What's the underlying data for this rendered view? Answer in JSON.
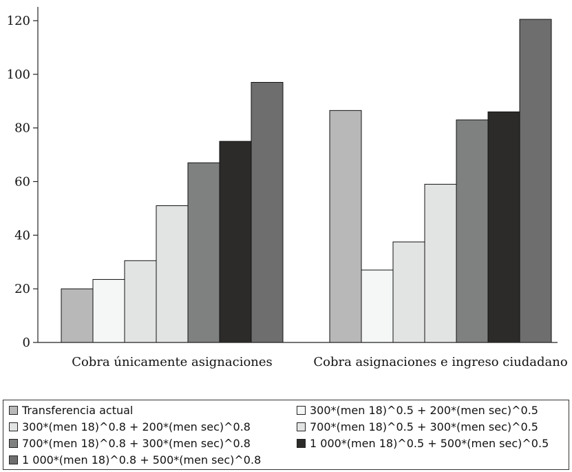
{
  "chart_data": {
    "type": "bar",
    "categories": [
      "Cobra únicamente asignaciones",
      "Cobra asignaciones e ingreso ciudadano"
    ],
    "ylim": [
      0,
      120
    ],
    "yticks": [
      0,
      20,
      40,
      60,
      80,
      100,
      120
    ],
    "grid": false,
    "legend_placement": "bottom",
    "series": [
      {
        "name": "Transferencia actual",
        "color": "#b8b8b8",
        "values": [
          20,
          86.5
        ]
      },
      {
        "name": "300*(men 18)^0.5 + 200*(men sec)^0.5",
        "color": "#f5f7f7",
        "values": [
          23.5,
          27
        ]
      },
      {
        "name": "300*(men 18)^0.8 + 200*(men sec)^0.8",
        "color": "#e2e4e4",
        "values": [
          30.5,
          37.5
        ]
      },
      {
        "name": "700*(men 18)^0.5 + 300*(men sec)^0.5",
        "color": "#e2e4e4",
        "values": [
          51,
          59
        ]
      },
      {
        "name": "700*(men 18)^0.8 + 300*(men sec)^0.8",
        "color": "#7f8181",
        "values": [
          67,
          83
        ]
      },
      {
        "name": "1 000*(men 18)^0.5 + 500*(men sec)^0.5",
        "color": "#2c2b29",
        "values": [
          75,
          86
        ]
      },
      {
        "name": "1 000*(men 18)^0.8 + 500*(men sec)^0.8",
        "color": "#6e6e6e",
        "values": [
          97,
          120.5
        ]
      }
    ],
    "legend_order": [
      0,
      1,
      2,
      3,
      4,
      5,
      6
    ]
  }
}
